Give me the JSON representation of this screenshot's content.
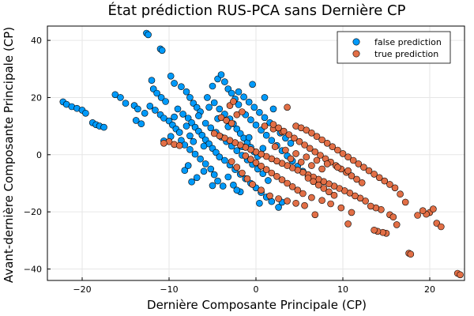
{
  "chart_data": {
    "type": "scatter",
    "title": "État prédiction RUS-PCA sans Dernière CP",
    "xlabel": "Dernière Composante Principale (CP)",
    "ylabel": "Avant-dernière Composante Principale (CP)",
    "xlim": [
      -24,
      24
    ],
    "ylim": [
      -44,
      45
    ],
    "xticks": [
      -20,
      -10,
      0,
      10,
      20
    ],
    "yticks": [
      -40,
      -20,
      0,
      20,
      40
    ],
    "xtick_labels": [
      "−20",
      "−10",
      "0",
      "10",
      "20"
    ],
    "ytick_labels": [
      "−40",
      "−20",
      "0",
      "20",
      "40"
    ],
    "grid": true,
    "legend": "top-right",
    "series": [
      {
        "name": "false prediction",
        "color": "#009AFA",
        "points": [
          [
            -22.2,
            18.5
          ],
          [
            -21.8,
            17.6
          ],
          [
            -21.2,
            16.8
          ],
          [
            -20.6,
            16.2
          ],
          [
            -20.0,
            15.6
          ],
          [
            -19.6,
            14.5
          ],
          [
            -18.8,
            11.2
          ],
          [
            -18.4,
            10.5
          ],
          [
            -18.0,
            10.0
          ],
          [
            -17.5,
            9.6
          ],
          [
            -16.2,
            21.0
          ],
          [
            -15.6,
            20.0
          ],
          [
            -15.0,
            18.0
          ],
          [
            -14.0,
            17.2
          ],
          [
            -13.6,
            16.0
          ],
          [
            -12.8,
            14.5
          ],
          [
            -12.6,
            42.5
          ],
          [
            -12.4,
            42.0
          ],
          [
            -11.0,
            37.0
          ],
          [
            -10.8,
            36.5
          ],
          [
            -13.8,
            12.0
          ],
          [
            -13.2,
            10.8
          ],
          [
            -12.0,
            26.0
          ],
          [
            -11.8,
            23.0
          ],
          [
            -11.4,
            21.5
          ],
          [
            -10.9,
            20.0
          ],
          [
            -10.4,
            18.6
          ],
          [
            -12.2,
            17.0
          ],
          [
            -11.6,
            15.6
          ],
          [
            -11.0,
            14.0
          ],
          [
            -10.6,
            12.8
          ],
          [
            -10.0,
            11.8
          ],
          [
            -9.6,
            10.4
          ],
          [
            -9.2,
            9.0
          ],
          [
            -8.8,
            7.8
          ],
          [
            -9.8,
            27.5
          ],
          [
            -9.4,
            25.0
          ],
          [
            -8.6,
            23.8
          ],
          [
            -8.0,
            22.0
          ],
          [
            -7.6,
            20.0
          ],
          [
            -7.2,
            18.0
          ],
          [
            -6.8,
            16.5
          ],
          [
            -6.4,
            15.0
          ],
          [
            -9.0,
            16.0
          ],
          [
            -8.4,
            14.2
          ],
          [
            -7.8,
            12.8
          ],
          [
            -7.4,
            11.2
          ],
          [
            -7.0,
            9.6
          ],
          [
            -6.6,
            8.2
          ],
          [
            -6.2,
            6.8
          ],
          [
            -5.8,
            5.2
          ],
          [
            -5.4,
            3.8
          ],
          [
            -5.0,
            2.2
          ],
          [
            -4.6,
            0.8
          ],
          [
            -4.2,
            -0.8
          ],
          [
            -8.6,
            5.0
          ],
          [
            -8.2,
            3.4
          ],
          [
            -7.6,
            1.8
          ],
          [
            -7.0,
            0.2
          ],
          [
            -6.4,
            -1.5
          ],
          [
            -5.8,
            -3.2
          ],
          [
            -5.2,
            -5.0
          ],
          [
            -4.8,
            -7.0
          ],
          [
            -4.4,
            -9.2
          ],
          [
            -3.8,
            -11.0
          ],
          [
            -6.8,
            -8.0
          ],
          [
            -7.4,
            -9.5
          ],
          [
            -8.2,
            -5.5
          ],
          [
            -7.8,
            -3.8
          ],
          [
            -6.0,
            3.0
          ],
          [
            -5.6,
            20.0
          ],
          [
            -5.0,
            24.0
          ],
          [
            -4.4,
            26.5
          ],
          [
            -4.0,
            28.0
          ],
          [
            -3.6,
            25.5
          ],
          [
            -3.2,
            23.0
          ],
          [
            -2.8,
            21.5
          ],
          [
            -2.4,
            19.5
          ],
          [
            -2.0,
            17.5
          ],
          [
            -4.8,
            18.2
          ],
          [
            -4.2,
            16.0
          ],
          [
            -3.6,
            14.2
          ],
          [
            -3.0,
            12.5
          ],
          [
            -2.6,
            10.8
          ],
          [
            -2.2,
            9.0
          ],
          [
            -1.8,
            7.4
          ],
          [
            -1.4,
            5.8
          ],
          [
            -1.0,
            4.2
          ],
          [
            -0.6,
            2.6
          ],
          [
            -0.2,
            1.0
          ],
          [
            0.2,
            -0.6
          ],
          [
            -5.8,
            11.0
          ],
          [
            -5.2,
            9.4
          ],
          [
            -4.6,
            7.8
          ],
          [
            -4.0,
            6.2
          ],
          [
            -3.4,
            4.6
          ],
          [
            -2.8,
            3.0
          ],
          [
            -2.2,
            1.4
          ],
          [
            -1.6,
            -0.2
          ],
          [
            -1.0,
            -1.8
          ],
          [
            -0.4,
            -3.4
          ],
          [
            0.2,
            -5.0
          ],
          [
            0.8,
            -6.6
          ],
          [
            -3.6,
            -2.0
          ],
          [
            -3.0,
            -3.6
          ],
          [
            -2.4,
            -5.2
          ],
          [
            -1.8,
            -6.8
          ],
          [
            -1.2,
            -8.4
          ],
          [
            -0.6,
            -10.0
          ],
          [
            0.0,
            -11.6
          ],
          [
            0.6,
            -13.2
          ],
          [
            1.2,
            -14.8
          ],
          [
            1.8,
            -16.4
          ],
          [
            0.4,
            -17.0
          ],
          [
            2.6,
            -18.4
          ],
          [
            -2.0,
            22.0
          ],
          [
            -1.4,
            20.2
          ],
          [
            -0.8,
            18.4
          ],
          [
            -0.2,
            16.6
          ],
          [
            0.4,
            14.8
          ],
          [
            1.0,
            13.0
          ],
          [
            1.6,
            11.2
          ],
          [
            2.2,
            9.4
          ],
          [
            2.8,
            7.6
          ],
          [
            3.4,
            5.8
          ],
          [
            4.0,
            4.0
          ],
          [
            -1.2,
            14.0
          ],
          [
            -0.6,
            12.2
          ],
          [
            0.0,
            10.4
          ],
          [
            0.6,
            8.6
          ],
          [
            1.2,
            6.8
          ],
          [
            1.8,
            5.0
          ],
          [
            2.4,
            3.2
          ],
          [
            3.0,
            1.4
          ],
          [
            3.6,
            -0.4
          ],
          [
            4.2,
            -2.2
          ],
          [
            4.8,
            -4.0
          ],
          [
            5.4,
            -5.8
          ],
          [
            6.0,
            -7.6
          ],
          [
            -1.8,
            -13.0
          ],
          [
            -2.6,
            -10.6
          ],
          [
            -3.2,
            -7.8
          ],
          [
            -1.6,
            2.8
          ],
          [
            -0.8,
            6.0
          ],
          [
            0.8,
            2.2
          ],
          [
            -9.4,
            13.2
          ],
          [
            -8.0,
            10.0
          ],
          [
            -6.6,
            13.6
          ],
          [
            -5.4,
            16.6
          ],
          [
            -4.4,
            12.6
          ],
          [
            -3.2,
            9.8
          ],
          [
            -7.2,
            4.6
          ],
          [
            -6.0,
            -5.8
          ],
          [
            -5.0,
            -10.8
          ],
          [
            -2.2,
            -12.4
          ],
          [
            3.0,
            -16.6
          ],
          [
            1.4,
            -9.0
          ],
          [
            2.0,
            16.0
          ],
          [
            1.0,
            20.0
          ],
          [
            -0.4,
            24.6
          ],
          [
            -9.8,
            6.4
          ],
          [
            -10.6,
            4.8
          ],
          [
            -7.6,
            6.6
          ]
        ]
      },
      {
        "name": "true prediction",
        "color": "#E26F46",
        "points": [
          [
            23.2,
            -41.5
          ],
          [
            23.5,
            -42.0
          ],
          [
            17.6,
            -34.5
          ],
          [
            17.8,
            -34.8
          ],
          [
            20.8,
            -24.0
          ],
          [
            21.3,
            -25.2
          ],
          [
            20.0,
            -20.2
          ],
          [
            20.4,
            -19.0
          ],
          [
            19.6,
            -20.8
          ],
          [
            19.2,
            -19.6
          ],
          [
            18.6,
            -21.2
          ],
          [
            16.2,
            -24.5
          ],
          [
            15.0,
            -27.5
          ],
          [
            14.6,
            -27.2
          ],
          [
            14.0,
            -26.8
          ],
          [
            13.6,
            -26.4
          ],
          [
            15.4,
            -21.0
          ],
          [
            15.8,
            -21.8
          ],
          [
            14.4,
            -19.2
          ],
          [
            13.8,
            -18.6
          ],
          [
            13.2,
            -18.0
          ],
          [
            12.6,
            -16.2
          ],
          [
            12.0,
            -15.2
          ],
          [
            11.4,
            -14.4
          ],
          [
            10.8,
            -13.4
          ],
          [
            10.2,
            -12.6
          ],
          [
            9.6,
            -11.8
          ],
          [
            9.0,
            -11.0
          ],
          [
            8.4,
            -10.2
          ],
          [
            7.8,
            -9.4
          ],
          [
            7.2,
            -8.6
          ],
          [
            6.6,
            -7.8
          ],
          [
            6.0,
            -7.0
          ],
          [
            5.4,
            -6.2
          ],
          [
            4.8,
            -5.4
          ],
          [
            4.2,
            -4.6
          ],
          [
            3.6,
            -3.8
          ],
          [
            3.0,
            -3.0
          ],
          [
            2.4,
            -2.2
          ],
          [
            1.8,
            -1.4
          ],
          [
            1.2,
            -0.6
          ],
          [
            0.6,
            0.2
          ],
          [
            0.0,
            1.0
          ],
          [
            -0.6,
            1.8
          ],
          [
            -1.2,
            2.6
          ],
          [
            -1.8,
            3.4
          ],
          [
            -2.4,
            4.2
          ],
          [
            -3.0,
            5.0
          ],
          [
            -3.6,
            5.8
          ],
          [
            -4.2,
            6.6
          ],
          [
            -4.8,
            7.4
          ],
          [
            -10.0,
            4.6
          ],
          [
            -10.6,
            4.0
          ],
          [
            -9.4,
            3.6
          ],
          [
            -8.8,
            3.2
          ],
          [
            -4.0,
            13.0
          ],
          [
            -3.4,
            12.0
          ],
          [
            -2.8,
            11.0
          ],
          [
            -2.2,
            14.0
          ],
          [
            -1.6,
            15.0
          ],
          [
            -3.0,
            17.2
          ],
          [
            -2.6,
            18.6
          ],
          [
            1.0,
            10.0
          ],
          [
            2.0,
            9.0
          ],
          [
            3.0,
            8.0
          ],
          [
            3.6,
            16.6
          ],
          [
            4.6,
            10.0
          ],
          [
            5.2,
            9.4
          ],
          [
            5.8,
            8.6
          ],
          [
            6.4,
            7.6
          ],
          [
            7.0,
            6.4
          ],
          [
            7.6,
            5.2
          ],
          [
            8.2,
            4.0
          ],
          [
            8.8,
            2.8
          ],
          [
            9.4,
            1.6
          ],
          [
            10.0,
            0.4
          ],
          [
            10.6,
            -0.8
          ],
          [
            11.2,
            -2.0
          ],
          [
            11.8,
            -3.2
          ],
          [
            12.4,
            -4.4
          ],
          [
            13.0,
            -5.6
          ],
          [
            13.6,
            -6.8
          ],
          [
            14.2,
            -8.0
          ],
          [
            14.8,
            -9.2
          ],
          [
            15.4,
            -10.4
          ],
          [
            16.0,
            -11.6
          ],
          [
            16.6,
            -13.8
          ],
          [
            17.2,
            -16.6
          ],
          [
            12.2,
            -9.8
          ],
          [
            11.6,
            -8.6
          ],
          [
            11.0,
            -7.4
          ],
          [
            10.4,
            -6.2
          ],
          [
            9.8,
            -5.0
          ],
          [
            9.2,
            -3.8
          ],
          [
            8.6,
            -2.6
          ],
          [
            8.0,
            -1.4
          ],
          [
            7.4,
            -0.2
          ],
          [
            6.8,
            1.0
          ],
          [
            6.2,
            2.2
          ],
          [
            5.6,
            3.4
          ],
          [
            5.0,
            4.6
          ],
          [
            4.4,
            5.8
          ],
          [
            3.8,
            7.0
          ],
          [
            3.2,
            8.2
          ],
          [
            2.6,
            9.4
          ],
          [
            2.0,
            10.6
          ],
          [
            9.0,
            -14.2
          ],
          [
            8.4,
            -13.0
          ],
          [
            7.8,
            -11.8
          ],
          [
            7.2,
            -10.6
          ],
          [
            6.6,
            -9.4
          ],
          [
            6.0,
            -8.2
          ],
          [
            5.4,
            -13.6
          ],
          [
            4.8,
            -12.4
          ],
          [
            4.2,
            -11.2
          ],
          [
            3.6,
            -10.0
          ],
          [
            3.0,
            -8.8
          ],
          [
            2.4,
            -7.6
          ],
          [
            1.8,
            -6.4
          ],
          [
            1.2,
            -5.2
          ],
          [
            0.6,
            -4.0
          ],
          [
            0.0,
            -2.8
          ],
          [
            -0.6,
            -1.6
          ],
          [
            -1.2,
            -0.4
          ],
          [
            6.8,
            -21.0
          ],
          [
            10.6,
            -24.2
          ],
          [
            11.0,
            -20.2
          ],
          [
            9.8,
            -18.6
          ],
          [
            8.6,
            -17.2
          ],
          [
            7.6,
            -16.0
          ],
          [
            6.4,
            -15.0
          ],
          [
            5.6,
            -17.8
          ],
          [
            4.6,
            -17.0
          ],
          [
            3.6,
            -16.2
          ],
          [
            2.6,
            -15.4
          ],
          [
            1.6,
            -14.4
          ],
          [
            0.6,
            -12.4
          ],
          [
            -0.4,
            -10.4
          ],
          [
            -1.0,
            -8.4
          ],
          [
            -1.6,
            -6.4
          ],
          [
            -2.2,
            -4.4
          ],
          [
            -2.8,
            -2.4
          ],
          [
            2.2,
            2.8
          ],
          [
            3.4,
            1.6
          ],
          [
            4.6,
            0.4
          ],
          [
            5.8,
            -0.8
          ],
          [
            7.0,
            -2.0
          ],
          [
            8.2,
            -3.2
          ],
          [
            9.4,
            -4.4
          ],
          [
            10.6,
            -5.6
          ],
          [
            4.0,
            -1.4
          ],
          [
            5.2,
            -2.6
          ],
          [
            6.4,
            -3.8
          ],
          [
            7.6,
            -5.0
          ]
        ]
      }
    ]
  }
}
